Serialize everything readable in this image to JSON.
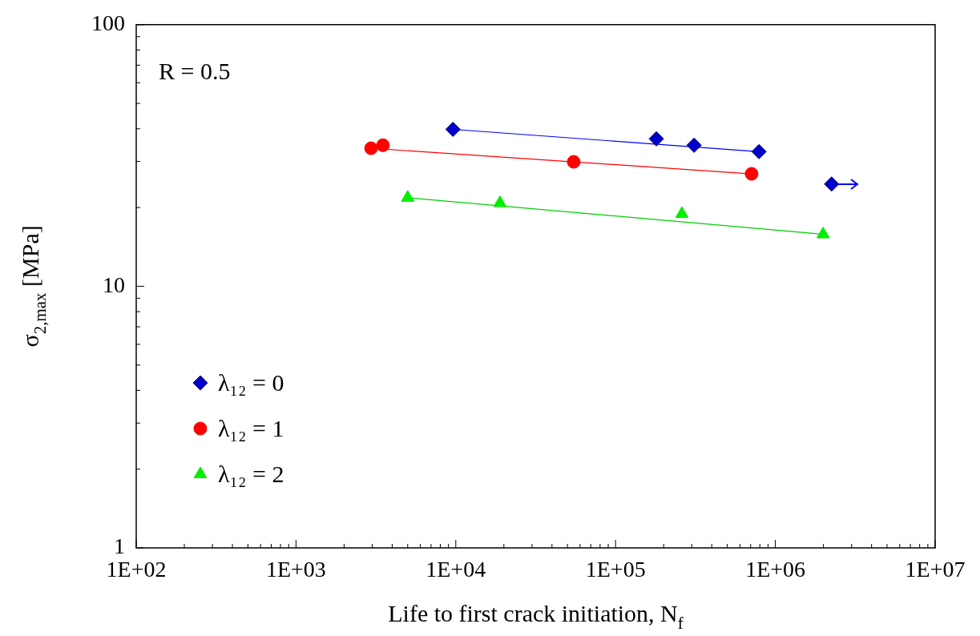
{
  "chart_data": {
    "type": "scatter",
    "xlabel": "Life to first crack initiation, N$_{f}$",
    "ylabel": "σ$_{2,max}$ [MPa]",
    "log": "xy",
    "grid": false,
    "legend": "bottom left",
    "xlim": [
      100,
      10000000
    ],
    "ylim": [
      1,
      100
    ],
    "xticks": [
      {
        "value": 100,
        "label": "1E+02"
      },
      {
        "value": 200,
        "label": null
      },
      {
        "value": 300,
        "label": null
      },
      {
        "value": 400,
        "label": null
      },
      {
        "value": 500,
        "label": null
      },
      {
        "value": 600,
        "label": null
      },
      {
        "value": 700,
        "label": null
      },
      {
        "value": 800,
        "label": null
      },
      {
        "value": 900,
        "label": null
      },
      {
        "value": 1000,
        "label": "1E+03"
      },
      {
        "value": 2000,
        "label": null
      },
      {
        "value": 3000,
        "label": null
      },
      {
        "value": 4000,
        "label": null
      },
      {
        "value": 5000,
        "label": null
      },
      {
        "value": 6000,
        "label": null
      },
      {
        "value": 7000,
        "label": null
      },
      {
        "value": 8000,
        "label": null
      },
      {
        "value": 9000,
        "label": null
      },
      {
        "value": 10000,
        "label": "1E+04"
      },
      {
        "value": 20000,
        "label": null
      },
      {
        "value": 30000,
        "label": null
      },
      {
        "value": 40000,
        "label": null
      },
      {
        "value": 50000,
        "label": null
      },
      {
        "value": 60000,
        "label": null
      },
      {
        "value": 70000,
        "label": null
      },
      {
        "value": 80000,
        "label": null
      },
      {
        "value": 90000,
        "label": null
      },
      {
        "value": 100000,
        "label": "1E+05"
      },
      {
        "value": 200000,
        "label": null
      },
      {
        "value": 300000,
        "label": null
      },
      {
        "value": 400000,
        "label": null
      },
      {
        "value": 500000,
        "label": null
      },
      {
        "value": 600000,
        "label": null
      },
      {
        "value": 700000,
        "label": null
      },
      {
        "value": 800000,
        "label": null
      },
      {
        "value": 900000,
        "label": null
      },
      {
        "value": 1000000,
        "label": "1E+06"
      },
      {
        "value": 2000000,
        "label": null
      },
      {
        "value": 3000000,
        "label": null
      },
      {
        "value": 4000000,
        "label": null
      },
      {
        "value": 5000000,
        "label": null
      },
      {
        "value": 6000000,
        "label": null
      },
      {
        "value": 7000000,
        "label": null
      },
      {
        "value": 8000000,
        "label": null
      },
      {
        "value": 9000000,
        "label": null
      },
      {
        "value": 10000000,
        "label": "1E+07"
      }
    ],
    "yticks": [
      1,
      {
        "value": 2,
        "label": null
      },
      {
        "value": 3,
        "label": null
      },
      {
        "value": 4,
        "label": null
      },
      {
        "value": 5,
        "label": null
      },
      {
        "value": 6,
        "label": null
      },
      {
        "value": 7,
        "label": null
      },
      {
        "value": 8,
        "label": null
      },
      {
        "value": 9,
        "label": null
      },
      10,
      {
        "value": 20,
        "label": null
      },
      {
        "value": 30,
        "label": null
      },
      {
        "value": 40,
        "label": null
      },
      {
        "value": 50,
        "label": null
      },
      {
        "value": 60,
        "label": null
      },
      {
        "value": 70,
        "label": null
      },
      {
        "value": 80,
        "label": null
      },
      {
        "value": 90,
        "label": null
      },
      100
    ],
    "annotations": [
      "R = 0.5"
    ],
    "series": [
      {
        "name": "λ₁₂ = 0",
        "marker": "diamond",
        "color": "#0000cc",
        "x": [
          9600,
          180000,
          310000,
          790000,
          2250000
        ],
        "values": [
          39.8,
          36.6,
          34.6,
          32.7,
          24.6
        ]
      },
      {
        "name": "λ₁₂ = 1",
        "marker": "circle",
        "color": "#ff0000",
        "x": [
          2950,
          3500,
          54700,
          710000
        ],
        "values": [
          33.7,
          34.6,
          29.9,
          26.9
        ]
      },
      {
        "name": "λ₁₂ = 2",
        "marker": "triangle",
        "color": "#00ee00",
        "x": [
          5000,
          18900,
          260000,
          1990000
        ],
        "values": [
          21.8,
          20.8,
          18.9,
          15.8
        ]
      },
      {
        "type": "line",
        "marker": "none",
        "color": "#0000ff",
        "x": [
          9600,
          790000
        ],
        "values": [
          39.8,
          32.7
        ]
      },
      {
        "type": "line",
        "marker": "none",
        "color": "#ff0000",
        "x": [
          2950,
          710000
        ],
        "values": [
          33.7,
          26.9
        ]
      },
      {
        "type": "line",
        "marker": "none",
        "color": "#00cc00",
        "x": [
          5000,
          1990000
        ],
        "values": [
          21.8,
          15.8
        ]
      }
    ]
  }
}
